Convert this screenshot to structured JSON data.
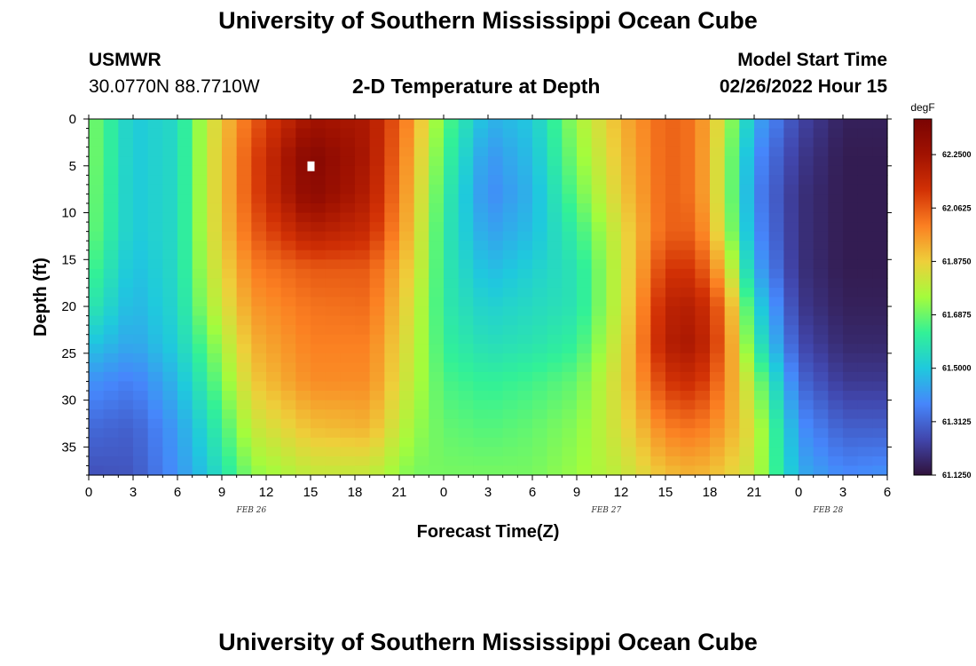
{
  "header": {
    "title": "University of Southern Mississippi Ocean Cube",
    "station": "USMWR",
    "coordinates": "30.0770N  88.7710W",
    "subtitle": "2-D Temperature at Depth",
    "model_start_label": "Model Start Time",
    "model_start_value": "02/26/2022 Hour 15"
  },
  "footer": {
    "title": "University of Southern Mississippi Ocean Cube"
  },
  "chart_data": {
    "type": "heatmap",
    "title": "2-D Temperature at Depth",
    "xlabel": "Forecast Time(Z)",
    "ylabel": "Depth (ft)",
    "x_hours": [
      0,
      3,
      6,
      9,
      12,
      15,
      18,
      21,
      24,
      27,
      30,
      33,
      36,
      39,
      42,
      45,
      48,
      51,
      54
    ],
    "x_tick_labels": [
      "0",
      "3",
      "6",
      "9",
      "12",
      "15",
      "18",
      "21",
      "0",
      "3",
      "6",
      "9",
      "12",
      "15",
      "18",
      "21",
      "0",
      "3",
      "6"
    ],
    "xlim": [
      0,
      54
    ],
    "date_labels": [
      {
        "hour": 11,
        "text": "FEB 26"
      },
      {
        "hour": 35,
        "text": "FEB 27"
      },
      {
        "hour": 50,
        "text": "FEB 28"
      }
    ],
    "y_ticks": [
      0,
      5,
      10,
      15,
      20,
      25,
      30,
      35
    ],
    "y_tick_labels": [
      "0",
      "5",
      "10",
      "15",
      "20",
      "25",
      "30",
      "35"
    ],
    "ylim": [
      0,
      38
    ],
    "y_inverted": true,
    "current_time_marker": {
      "hour": 15,
      "depth": 5
    },
    "colorbar": {
      "unit": "degF",
      "min": 61.125,
      "max": 62.375,
      "tick_values": [
        62.25,
        62.0625,
        61.875,
        61.6875,
        61.5,
        61.3125,
        61.125
      ],
      "tick_labels": [
        "62.2500",
        "62.0625",
        "61.8750",
        "61.6875",
        "61.5000",
        "61.3125",
        "61.1250"
      ]
    },
    "grid": {
      "time_step_hours": 1,
      "depth_step_ft": 1,
      "temperature_keyframes": [
        {
          "hour": 0,
          "profile": [
            61.72,
            61.72,
            61.71,
            61.7,
            61.66,
            61.6,
            61.5,
            61.4,
            61.32,
            61.27
          ]
        },
        {
          "hour": 3,
          "profile": [
            61.5,
            61.5,
            61.5,
            61.5,
            61.48,
            61.46,
            61.43,
            61.36,
            61.3,
            61.28
          ]
        },
        {
          "hour": 6,
          "profile": [
            61.55,
            61.55,
            61.55,
            61.55,
            61.55,
            61.54,
            61.52,
            61.47,
            61.42,
            61.4
          ]
        },
        {
          "hour": 8,
          "profile": [
            61.8,
            61.8,
            61.8,
            61.8,
            61.78,
            61.75,
            61.68,
            61.62,
            61.55,
            61.5
          ]
        },
        {
          "hour": 11,
          "profile": [
            62.05,
            62.08,
            62.08,
            62.05,
            62.0,
            61.96,
            61.92,
            61.88,
            61.8,
            61.72
          ]
        },
        {
          "hour": 15,
          "profile": [
            62.25,
            62.34,
            62.32,
            62.2,
            62.06,
            62.02,
            62.0,
            61.98,
            61.9,
            61.8
          ]
        },
        {
          "hour": 19,
          "profile": [
            62.22,
            62.22,
            62.2,
            62.15,
            62.06,
            62.03,
            62.0,
            61.98,
            61.92,
            61.8
          ]
        },
        {
          "hour": 22,
          "profile": [
            61.95,
            61.92,
            61.9,
            61.88,
            61.85,
            61.82,
            61.8,
            61.78,
            61.74,
            61.7
          ]
        },
        {
          "hour": 24,
          "profile": [
            61.68,
            61.65,
            61.62,
            61.6,
            61.6,
            61.6,
            61.62,
            61.65,
            61.68,
            61.7
          ]
        },
        {
          "hour": 27,
          "profile": [
            61.45,
            61.4,
            61.38,
            61.42,
            61.47,
            61.52,
            61.56,
            61.62,
            61.66,
            61.7
          ]
        },
        {
          "hour": 30,
          "profile": [
            61.5,
            61.48,
            61.46,
            61.48,
            61.52,
            61.55,
            61.58,
            61.64,
            61.68,
            61.7
          ]
        },
        {
          "hour": 33,
          "profile": [
            61.75,
            61.72,
            61.68,
            61.62,
            61.58,
            61.58,
            61.62,
            61.68,
            61.72,
            61.74
          ]
        },
        {
          "hour": 36,
          "profile": [
            61.92,
            61.9,
            61.88,
            61.84,
            61.82,
            61.82,
            61.84,
            61.86,
            61.84,
            61.8
          ]
        },
        {
          "hour": 39,
          "profile": [
            62.05,
            62.05,
            62.05,
            62.05,
            62.12,
            62.18,
            62.2,
            62.12,
            62.0,
            61.9
          ]
        },
        {
          "hour": 41,
          "profile": [
            62.02,
            62.02,
            62.02,
            62.05,
            62.12,
            62.2,
            62.23,
            62.15,
            62.02,
            61.92
          ]
        },
        {
          "hour": 43,
          "profile": [
            61.8,
            61.78,
            61.78,
            61.8,
            61.9,
            62.02,
            62.04,
            62.0,
            61.95,
            61.88
          ]
        },
        {
          "hour": 45,
          "profile": [
            61.45,
            61.4,
            61.38,
            61.4,
            61.45,
            61.55,
            61.62,
            61.75,
            61.82,
            61.8
          ]
        },
        {
          "hour": 48,
          "profile": [
            61.25,
            61.22,
            61.2,
            61.2,
            61.2,
            61.22,
            61.26,
            61.32,
            61.4,
            61.45
          ]
        },
        {
          "hour": 51,
          "profile": [
            61.16,
            61.15,
            61.15,
            61.15,
            61.15,
            61.16,
            61.18,
            61.22,
            61.3,
            61.38
          ]
        },
        {
          "hour": 54,
          "profile": [
            61.16,
            61.15,
            61.15,
            61.15,
            61.15,
            61.16,
            61.18,
            61.22,
            61.3,
            61.4
          ]
        }
      ],
      "profile_depths_ft": [
        0,
        4,
        8,
        12,
        16,
        20,
        24,
        28,
        33,
        38
      ]
    }
  }
}
